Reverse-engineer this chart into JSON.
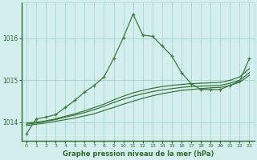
{
  "title": "Graphe pression niveau de la mer (hPa)",
  "bg_color": "#d4eeee",
  "grid_color": "#a8d8d8",
  "line_color_dark": "#2d6a2d",
  "line_color_med": "#3d7a3d",
  "xlim": [
    -0.5,
    23.5
  ],
  "ylim": [
    1013.55,
    1016.85
  ],
  "yticks": [
    1014,
    1015,
    1016
  ],
  "xticks": [
    0,
    1,
    2,
    3,
    4,
    5,
    6,
    7,
    8,
    9,
    10,
    11,
    12,
    13,
    14,
    15,
    16,
    17,
    18,
    19,
    20,
    21,
    22,
    23
  ],
  "series_main": [
    1013.72,
    1014.08,
    1014.12,
    1014.18,
    1014.35,
    1014.52,
    1014.72,
    1014.88,
    1015.08,
    1015.52,
    1016.02,
    1016.58,
    1016.08,
    1016.05,
    1015.82,
    1015.58,
    1015.18,
    1014.92,
    1014.78,
    1014.78,
    1014.78,
    1014.88,
    1014.98,
    1015.52
  ],
  "series_line2": [
    1013.92,
    1013.95,
    1013.98,
    1014.02,
    1014.06,
    1014.1,
    1014.15,
    1014.2,
    1014.28,
    1014.35,
    1014.43,
    1014.5,
    1014.57,
    1014.63,
    1014.68,
    1014.72,
    1014.76,
    1014.78,
    1014.8,
    1014.82,
    1014.83,
    1014.88,
    1014.95,
    1015.12
  ],
  "series_line3": [
    1013.95,
    1013.98,
    1014.02,
    1014.06,
    1014.12,
    1014.17,
    1014.23,
    1014.3,
    1014.38,
    1014.47,
    1014.55,
    1014.62,
    1014.68,
    1014.73,
    1014.77,
    1014.8,
    1014.83,
    1014.85,
    1014.86,
    1014.87,
    1014.88,
    1014.93,
    1015.0,
    1015.18
  ],
  "series_line4": [
    1013.98,
    1014.0,
    1014.03,
    1014.08,
    1014.14,
    1014.2,
    1014.27,
    1014.35,
    1014.43,
    1014.53,
    1014.62,
    1014.7,
    1014.76,
    1014.81,
    1014.85,
    1014.88,
    1014.9,
    1014.92,
    1014.93,
    1014.94,
    1014.95,
    1015.0,
    1015.08,
    1015.28
  ]
}
